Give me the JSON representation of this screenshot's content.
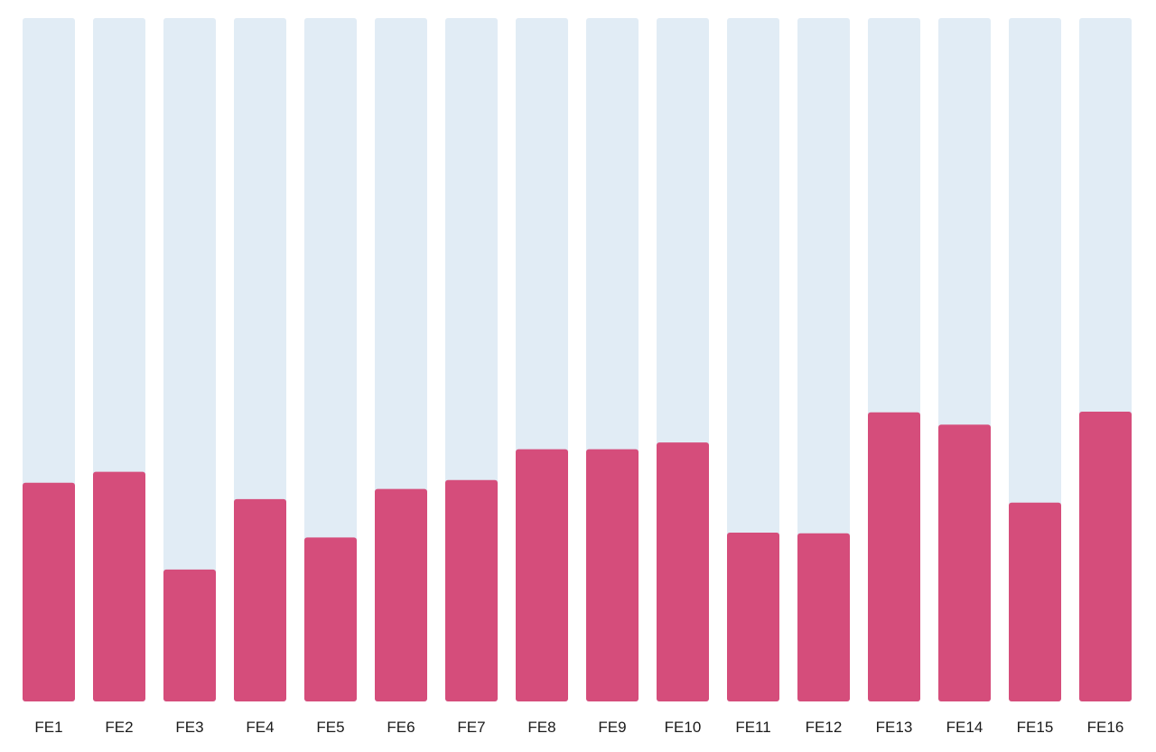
{
  "chart_data": {
    "type": "bar",
    "categories": [
      "FE1",
      "FE2",
      "FE3",
      "FE4",
      "FE5",
      "FE6",
      "FE7",
      "FE8",
      "FE9",
      "FE10",
      "FE11",
      "FE12",
      "FE13",
      "FE14",
      "FE15",
      "FE16"
    ],
    "values": [
      32,
      33.6,
      19.3,
      29.6,
      24,
      31.1,
      32.4,
      36.9,
      36.9,
      37.9,
      24.7,
      24.6,
      42.3,
      40.5,
      29.1,
      42.4
    ],
    "ylim": [
      0,
      100
    ],
    "title": "",
    "xlabel": "",
    "ylabel": "",
    "grid": false,
    "colors": {
      "bar": "#d54d7b",
      "track": "#e1ecf5",
      "label": "#1a1a1a"
    }
  }
}
